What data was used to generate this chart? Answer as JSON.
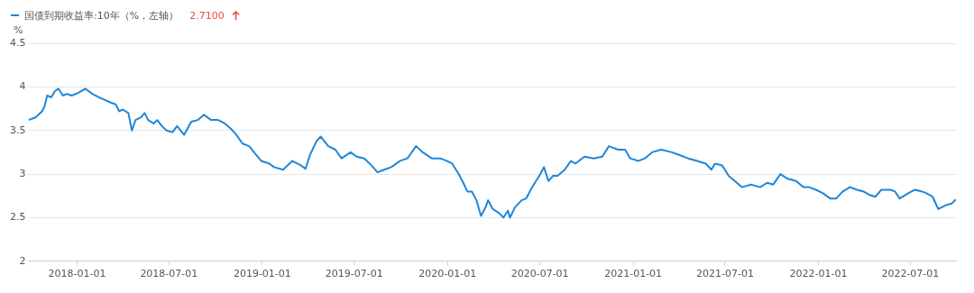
{
  "chart_data": {
    "type": "line",
    "ylabel": "%",
    "legend": "top left",
    "grid": "y",
    "marker": "none",
    "line_style": "solid",
    "annotations": [
      "2.7100"
    ],
    "xlim": [
      "2017-09-27",
      "2022-09-29"
    ],
    "xticks": [
      "2018-01-01",
      "2018-07-01",
      "2019-01-01",
      "2019-07-01",
      "2020-01-01",
      "2020-07-01",
      "2021-01-01",
      "2021-07-01",
      "2022-01-01",
      "2022-07-01"
    ],
    "ylim": [
      2,
      4.5
    ],
    "yticks": [
      2,
      2.5,
      3,
      3.5,
      4,
      4.5
    ],
    "x": [
      "2017-09-27",
      "2017-10-11",
      "2017-10-24",
      "2017-10-29",
      "2017-11-03",
      "2017-11-11",
      "2017-11-18",
      "2017-11-25",
      "2017-12-04",
      "2017-12-12",
      "2017-12-21",
      "2018-01-03",
      "2018-01-17",
      "2018-01-31",
      "2018-02-13",
      "2018-02-25",
      "2018-03-08",
      "2018-03-18",
      "2018-03-25",
      "2018-04-01",
      "2018-04-12",
      "2018-04-19",
      "2018-04-26",
      "2018-05-07",
      "2018-05-14",
      "2018-05-21",
      "2018-06-01",
      "2018-06-08",
      "2018-06-17",
      "2018-06-26",
      "2018-07-08",
      "2018-07-17",
      "2018-07-31",
      "2018-08-14",
      "2018-08-27",
      "2018-09-08",
      "2018-09-22",
      "2018-10-06",
      "2018-10-19",
      "2018-10-31",
      "2018-11-11",
      "2018-11-23",
      "2018-12-06",
      "2018-12-20",
      "2018-12-30",
      "2019-01-15",
      "2019-01-24",
      "2019-02-11",
      "2019-03-01",
      "2019-03-18",
      "2019-03-27",
      "2019-04-05",
      "2019-04-18",
      "2019-04-26",
      "2019-05-11",
      "2019-05-25",
      "2019-06-06",
      "2019-06-24",
      "2019-07-06",
      "2019-07-21",
      "2019-08-04",
      "2019-08-16",
      "2019-08-29",
      "2019-09-12",
      "2019-09-29",
      "2019-10-14",
      "2019-10-31",
      "2019-11-13",
      "2019-12-01",
      "2019-12-18",
      "2019-12-31",
      "2020-01-10",
      "2020-01-23",
      "2020-02-01",
      "2020-02-09",
      "2020-02-18",
      "2020-02-27",
      "2020-03-07",
      "2020-03-16",
      "2020-03-21",
      "2020-03-30",
      "2020-04-12",
      "2020-04-20",
      "2020-04-29",
      "2020-05-03",
      "2020-05-13",
      "2020-05-26",
      "2020-06-04",
      "2020-06-13",
      "2020-06-21",
      "2020-06-30",
      "2020-07-09",
      "2020-07-18",
      "2020-07-27",
      "2020-08-05",
      "2020-08-19",
      "2020-08-31",
      "2020-09-09",
      "2020-09-27",
      "2020-10-15",
      "2020-11-01",
      "2020-11-14",
      "2020-12-02",
      "2020-12-16",
      "2020-12-26",
      "2021-01-11",
      "2021-01-24",
      "2021-02-07",
      "2021-02-25",
      "2021-03-18",
      "2021-04-01",
      "2021-04-19",
      "2021-05-07",
      "2021-05-24",
      "2021-06-04",
      "2021-06-11",
      "2021-06-25",
      "2021-07-08",
      "2021-07-20",
      "2021-08-03",
      "2021-08-21",
      "2021-09-08",
      "2021-09-22",
      "2021-10-04",
      "2021-10-18",
      "2021-10-31",
      "2021-11-18",
      "2021-12-02",
      "2021-12-14",
      "2021-12-27",
      "2022-01-10",
      "2022-01-24",
      "2022-02-05",
      "2022-02-18",
      "2022-03-04",
      "2022-03-18",
      "2022-03-31",
      "2022-04-12",
      "2022-04-23",
      "2022-05-05",
      "2022-05-23",
      "2022-06-01",
      "2022-06-10",
      "2022-06-27",
      "2022-07-10",
      "2022-07-24",
      "2022-08-02",
      "2022-08-14",
      "2022-08-25",
      "2022-09-01",
      "2022-09-12",
      "2022-09-20",
      "2022-09-29"
    ],
    "series": [
      {
        "name": "国债到期收益率:10年（%，左轴）",
        "color": "#1f86d8",
        "values": [
          3.62,
          3.65,
          3.72,
          3.78,
          3.9,
          3.88,
          3.95,
          3.98,
          3.9,
          3.92,
          3.9,
          3.93,
          3.98,
          3.92,
          3.88,
          3.85,
          3.82,
          3.8,
          3.72,
          3.74,
          3.7,
          3.5,
          3.62,
          3.65,
          3.7,
          3.62,
          3.58,
          3.62,
          3.55,
          3.5,
          3.48,
          3.55,
          3.45,
          3.6,
          3.62,
          3.68,
          3.62,
          3.62,
          3.58,
          3.52,
          3.45,
          3.35,
          3.32,
          3.22,
          3.15,
          3.12,
          3.08,
          3.05,
          3.15,
          3.1,
          3.06,
          3.22,
          3.38,
          3.43,
          3.32,
          3.28,
          3.18,
          3.25,
          3.2,
          3.18,
          3.1,
          3.02,
          3.05,
          3.08,
          3.15,
          3.18,
          3.32,
          3.25,
          3.18,
          3.18,
          3.15,
          3.12,
          3.0,
          2.9,
          2.8,
          2.8,
          2.7,
          2.52,
          2.62,
          2.7,
          2.6,
          2.55,
          2.5,
          2.58,
          2.5,
          2.62,
          2.7,
          2.72,
          2.82,
          2.9,
          2.98,
          3.08,
          2.92,
          2.98,
          2.98,
          3.05,
          3.15,
          3.12,
          3.2,
          3.18,
          3.2,
          3.32,
          3.28,
          3.28,
          3.18,
          3.15,
          3.18,
          3.25,
          3.28,
          3.25,
          3.22,
          3.18,
          3.15,
          3.12,
          3.05,
          3.12,
          3.1,
          2.98,
          2.92,
          2.85,
          2.88,
          2.85,
          2.9,
          2.88,
          3.0,
          2.95,
          2.92,
          2.85,
          2.85,
          2.82,
          2.78,
          2.72,
          2.72,
          2.8,
          2.85,
          2.82,
          2.8,
          2.76,
          2.74,
          2.82,
          2.82,
          2.8,
          2.72,
          2.78,
          2.82,
          2.8,
          2.78,
          2.74,
          2.6,
          2.62,
          2.65,
          2.66,
          2.71
        ]
      }
    ]
  }
}
